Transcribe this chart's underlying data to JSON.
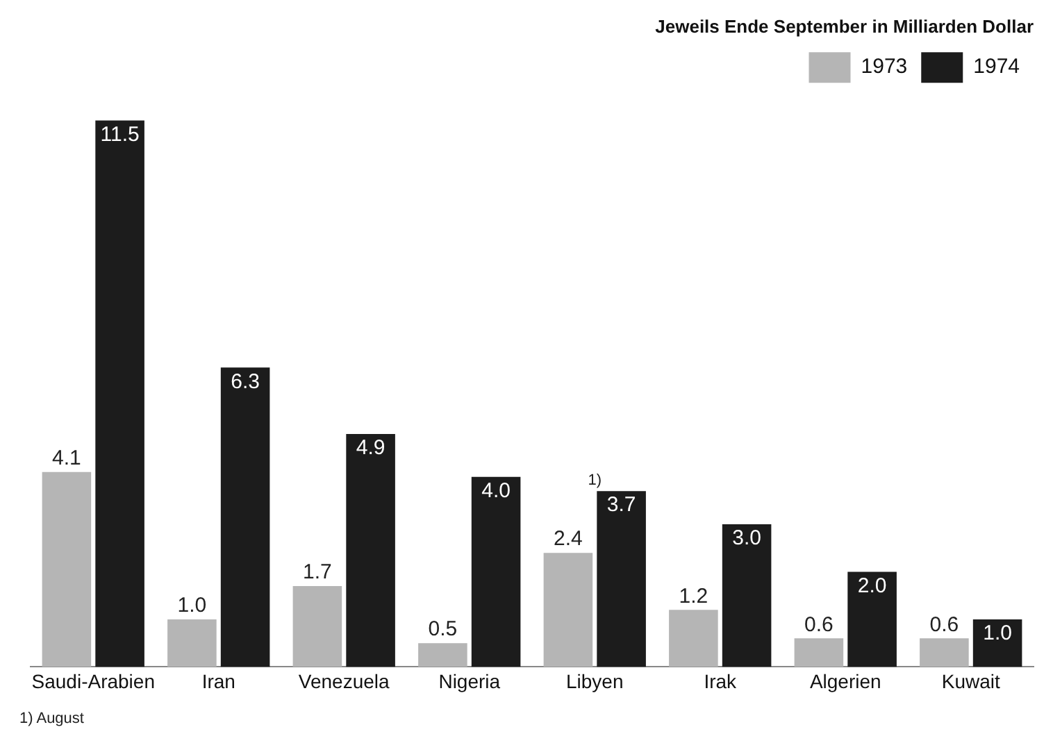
{
  "chart_data": {
    "type": "bar",
    "subtitle": "Jeweils Ende September in Milliarden Dollar",
    "categories": [
      "Saudi-Arabien",
      "Iran",
      "Venezuela",
      "Nigeria",
      "Libyen",
      "Irak",
      "Algerien",
      "Kuwait"
    ],
    "series": [
      {
        "name": "1973",
        "color": "#b5b5b5",
        "values": [
          4.1,
          1.0,
          1.7,
          0.5,
          2.4,
          1.2,
          0.6,
          0.6
        ],
        "value_labels": [
          "4.1",
          "1.0",
          "1.7",
          "0.5",
          "2.4",
          "1.2",
          "0.6",
          "0.6"
        ]
      },
      {
        "name": "1974",
        "color": "#1c1c1c",
        "values": [
          11.5,
          6.3,
          4.9,
          4.0,
          3.7,
          3.0,
          2.0,
          1.0
        ],
        "value_labels": [
          "11.5",
          "6.3",
          "4.9",
          "4.0",
          "3.7",
          "3.0",
          "2.0",
          "1.0"
        ]
      }
    ],
    "relative": false,
    "legend": "top right",
    "grid": false,
    "annotations": [
      {
        "text": "1)",
        "x": "Libyen",
        "y": 3.7
      },
      "1) August"
    ]
  }
}
